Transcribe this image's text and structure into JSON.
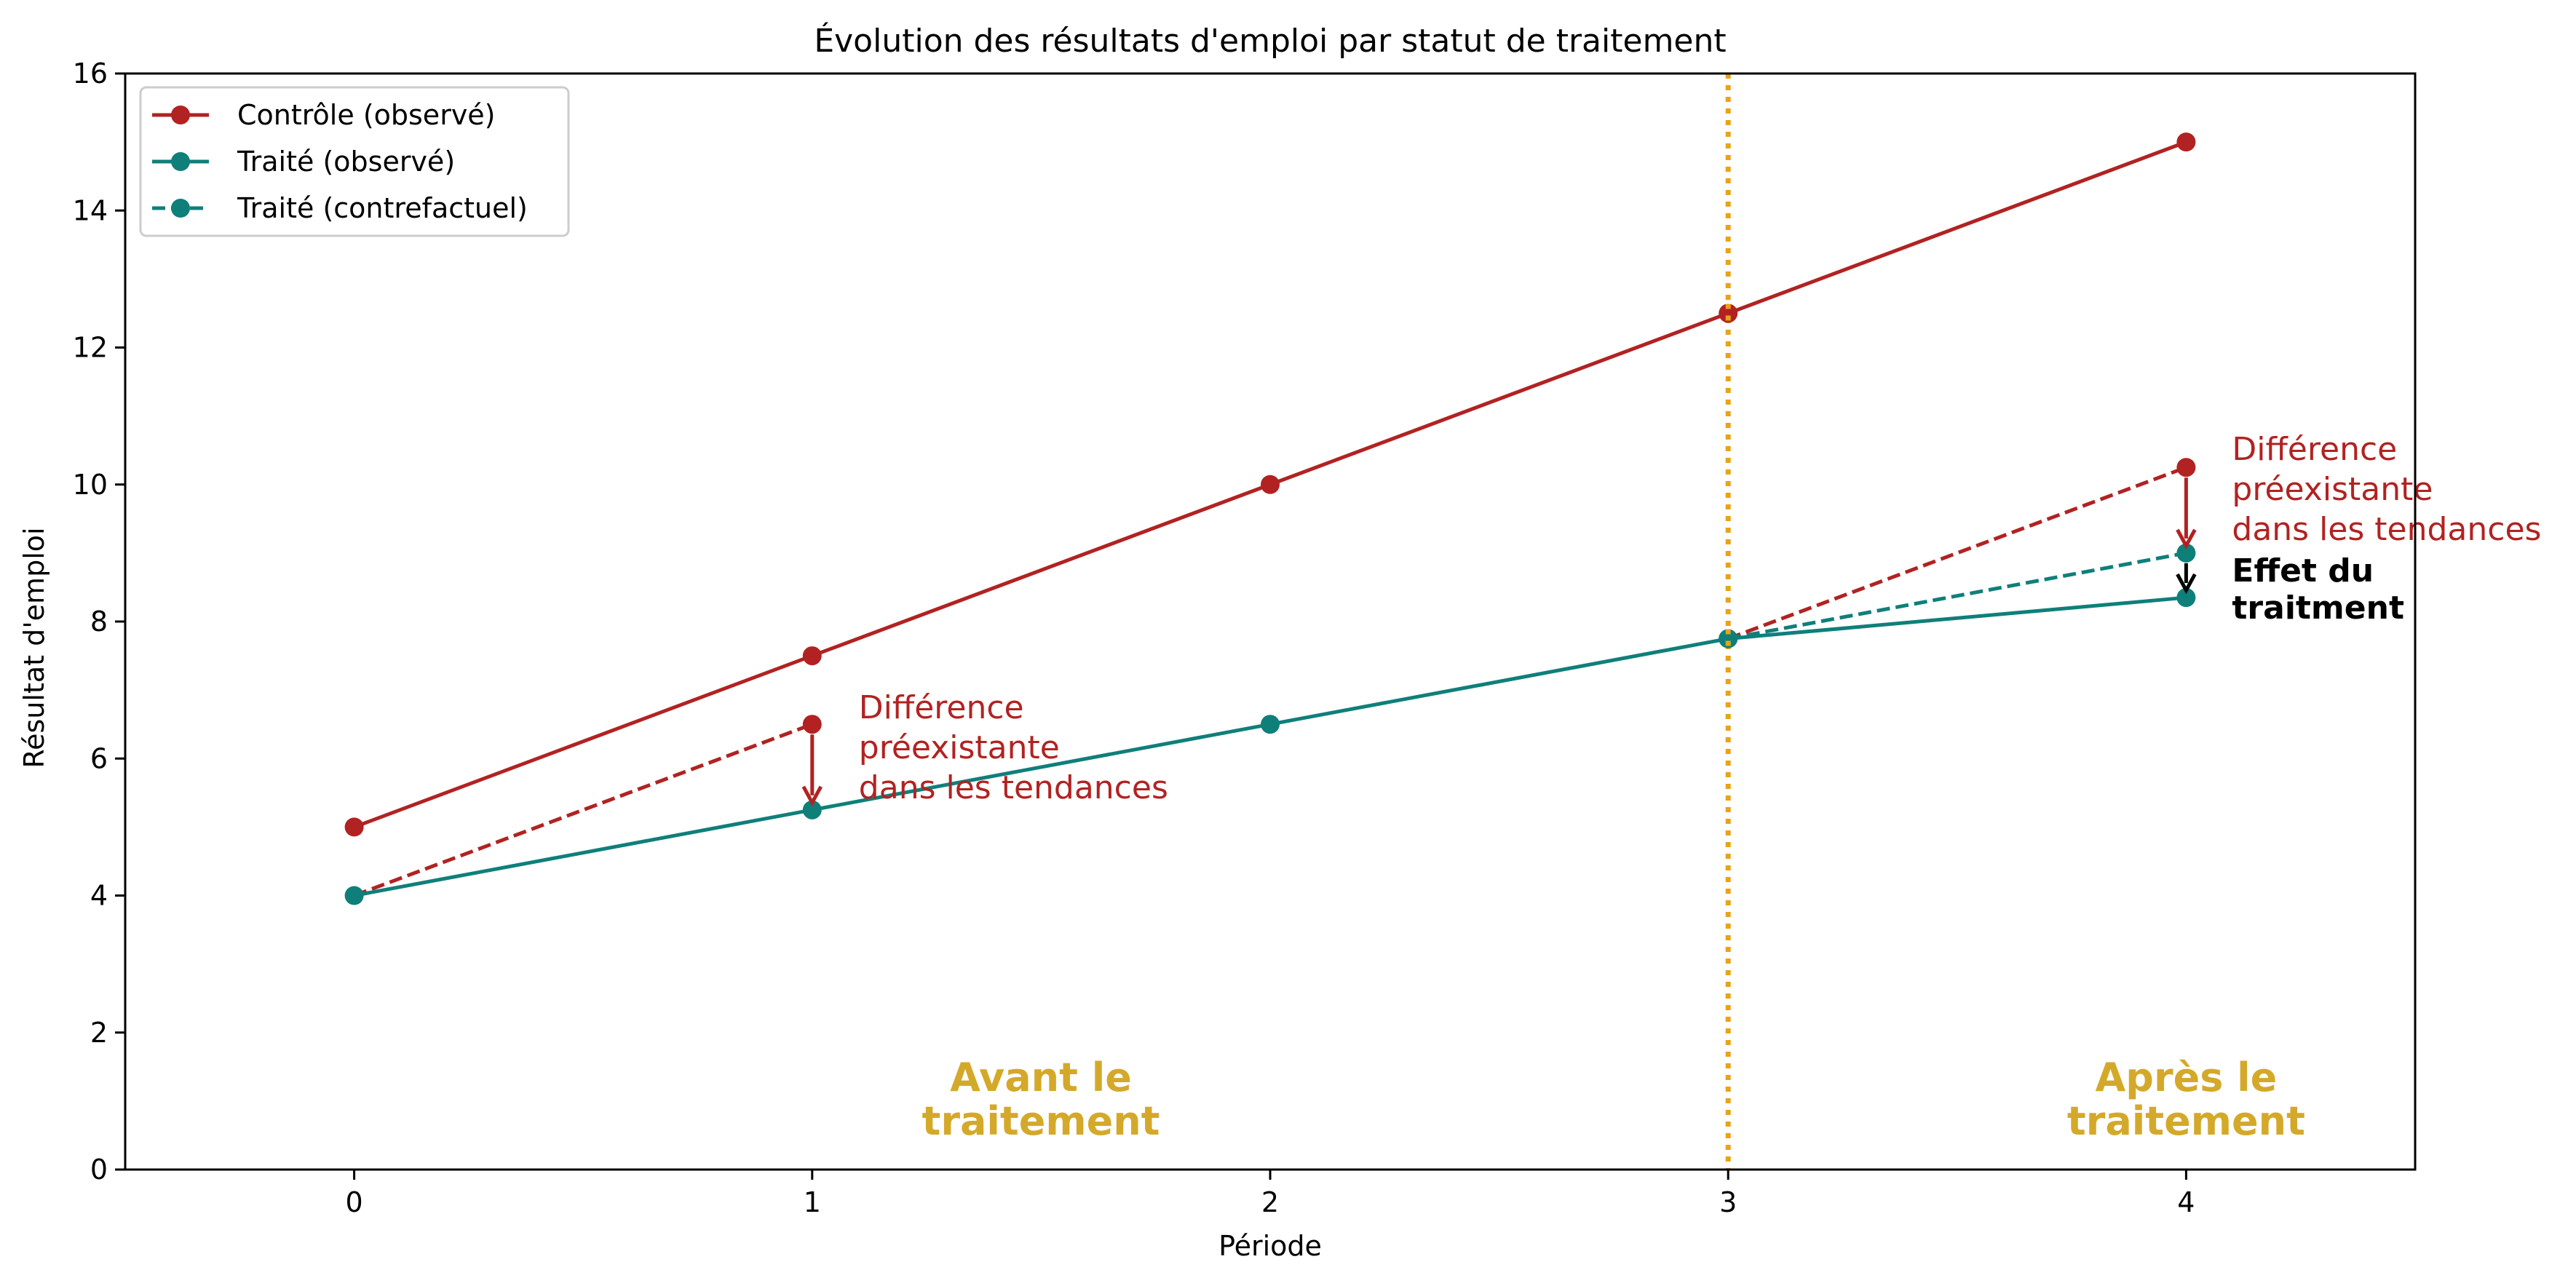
{
  "chart_data": {
    "type": "line",
    "title": "Évolution des résultats d'emploi par statut de traitement",
    "xlabel": "Période",
    "ylabel": "Résultat d'emploi",
    "xlim": [
      -0.5,
      4.5
    ],
    "ylim": [
      0,
      16
    ],
    "xticks": [
      0,
      1,
      2,
      3,
      4
    ],
    "yticks": [
      0,
      2,
      4,
      6,
      8,
      10,
      12,
      14,
      16
    ],
    "grid": false,
    "legend_position": "top-left",
    "colors": {
      "control": "#b22222",
      "treated": "#0f7f7a",
      "treatment_line": "#e8a317",
      "phase_text": "#d4a92a",
      "black": "#000000"
    },
    "series": [
      {
        "name": "Contrôle (observé)",
        "style": "solid",
        "color": "#b22222",
        "x": [
          0,
          1,
          2,
          3,
          4
        ],
        "y": [
          5,
          7.5,
          10,
          12.5,
          15
        ]
      },
      {
        "name": "Traité (observé)",
        "style": "solid",
        "color": "#0f7f7a",
        "x": [
          0,
          1,
          2,
          3,
          4
        ],
        "y": [
          4,
          5.25,
          6.5,
          7.75,
          8.35
        ]
      },
      {
        "name": "Traité (contrefactuel)",
        "style": "dashed",
        "color": "#0f7f7a",
        "x": [
          3,
          4
        ],
        "y": [
          7.75,
          9
        ]
      }
    ],
    "extra_lines": [
      {
        "id": "pre-trend-dashed",
        "style": "dashed",
        "color": "#b22222",
        "x": [
          0,
          1
        ],
        "y": [
          4,
          6.5
        ],
        "markers": [
          1
        ]
      },
      {
        "id": "post-trend-dashed",
        "style": "dashed",
        "color": "#b22222",
        "x": [
          3,
          4
        ],
        "y": [
          7.75,
          10.25
        ],
        "markers": [
          1
        ]
      }
    ],
    "treatment_period": 3,
    "arrows": [
      {
        "id": "pre-diff-arrow",
        "color": "#b22222",
        "x": 1,
        "y_from": 6.5,
        "y_to": 5.25
      },
      {
        "id": "post-diff-arrow",
        "color": "#b22222",
        "x": 4,
        "y_from": 10.25,
        "y_to": 9.0
      },
      {
        "id": "effect-arrow",
        "color": "#000000",
        "x": 4,
        "y_from": 9.0,
        "y_to": 8.35
      }
    ],
    "annotations": {
      "pre_difference": [
        "Différence",
        "préexistante",
        "dans les tendances"
      ],
      "post_difference": [
        "Différence",
        "préexistante",
        "dans les tendances"
      ],
      "treatment_effect": [
        "Effet du",
        "traitment"
      ],
      "before_label": [
        "Avant le",
        "traitement"
      ],
      "after_label": [
        "Après le",
        "traitement"
      ]
    }
  }
}
